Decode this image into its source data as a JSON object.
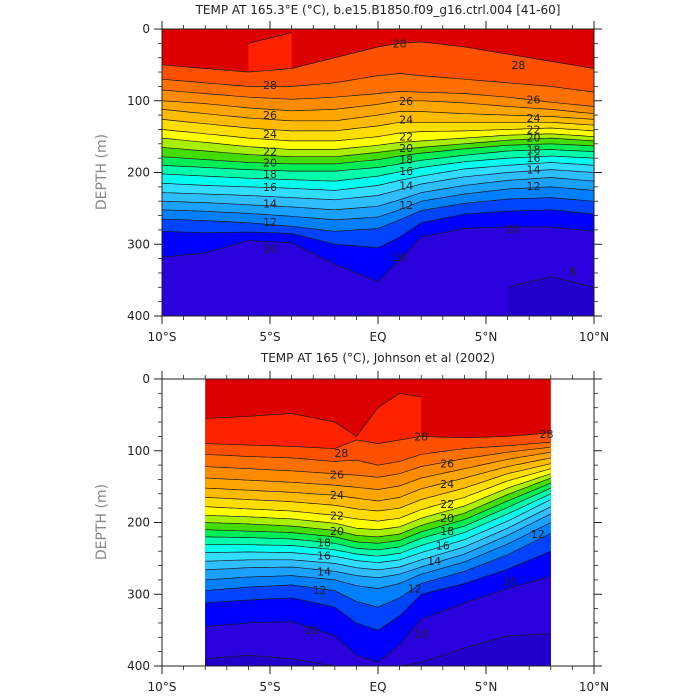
{
  "chart_data": [
    {
      "type": "contour",
      "title": "TEMP AT 165.3°E (°C), b.e15.B1850.f09_g16.ctrl.004 [41-60]",
      "ylabel": "DEPTH (m)",
      "xlim": [
        -10,
        10
      ],
      "ylim": [
        400,
        0
      ],
      "x_ticks": [
        -10,
        -5,
        0,
        5,
        10
      ],
      "x_tick_labels": [
        "10°S",
        "5°S",
        "EQ",
        "5°N",
        "10°N"
      ],
      "y_ticks": [
        0,
        100,
        200,
        300,
        400
      ],
      "y_tick_labels": [
        "0",
        "100",
        "200",
        "300",
        "400"
      ],
      "data_extent_x": [
        -10,
        10
      ],
      "contour_interval": 1,
      "colors": [
        "#2200cc",
        "#2a00dd",
        "#0000ff",
        "#0044ff",
        "#0080ff",
        "#1aa0ff",
        "#2ebeff",
        "#30dcff",
        "#00ffee",
        "#00ffaa",
        "#00ee55",
        "#44dd00",
        "#aaee00",
        "#ffff00",
        "#ffdd00",
        "#ffbb00",
        "#ffa500",
        "#ff8c00",
        "#ff7000",
        "#ff5000",
        "#ff2200",
        "#dd0000"
      ],
      "color_levels": [
        0,
        9,
        10,
        11,
        12,
        13,
        14,
        15,
        16,
        17,
        18,
        19,
        20,
        21,
        22,
        23,
        24,
        25,
        26,
        27,
        28,
        29
      ],
      "isotherm_depths": {
        "x": [
          -10,
          -8,
          -6,
          -4,
          -2,
          0,
          1,
          2,
          4,
          6,
          8,
          10
        ],
        "T29": [
          null,
          null,
          20,
          5,
          null,
          null,
          null,
          null,
          null,
          null,
          null,
          null
        ],
        "T28": [
          50,
          55,
          60,
          55,
          40,
          25,
          20,
          18,
          25,
          35,
          45,
          55
        ],
        "T27": [
          70,
          75,
          80,
          80,
          75,
          65,
          62,
          65,
          70,
          75,
          80,
          88
        ],
        "T26": [
          85,
          90,
          95,
          98,
          95,
          90,
          87,
          88,
          90,
          95,
          102,
          108
        ],
        "T25": [
          100,
          104,
          110,
          114,
          112,
          105,
          100,
          100,
          103,
          108,
          112,
          118
        ],
        "T24": [
          112,
          118,
          124,
          128,
          128,
          120,
          115,
          115,
          118,
          120,
          122,
          126
        ],
        "T23": [
          126,
          132,
          138,
          142,
          142,
          135,
          130,
          130,
          130,
          130,
          130,
          134
        ],
        "T22": [
          140,
          146,
          152,
          156,
          156,
          150,
          145,
          143,
          142,
          140,
          138,
          142
        ],
        "T21": [
          152,
          158,
          164,
          168,
          168,
          162,
          158,
          156,
          152,
          148,
          146,
          150
        ],
        "T20": [
          165,
          170,
          175,
          178,
          178,
          172,
          168,
          165,
          160,
          155,
          152,
          156
        ],
        "T19": [
          178,
          182,
          186,
          188,
          188,
          182,
          177,
          173,
          167,
          162,
          160,
          163
        ],
        "T18": [
          190,
          193,
          196,
          198,
          198,
          193,
          188,
          183,
          176,
          170,
          168,
          171
        ],
        "T17": [
          202,
          205,
          208,
          210,
          212,
          205,
          199,
          193,
          185,
          180,
          177,
          180
        ],
        "T16": [
          215,
          218,
          220,
          222,
          225,
          218,
          211,
          205,
          195,
          190,
          186,
          190
        ],
        "T15": [
          228,
          230,
          232,
          235,
          238,
          232,
          224,
          216,
          206,
          200,
          196,
          200
        ],
        "T14": [
          240,
          242,
          245,
          248,
          252,
          247,
          238,
          228,
          218,
          211,
          207,
          212
        ],
        "T13": [
          252,
          254,
          257,
          261,
          266,
          262,
          252,
          240,
          230,
          223,
          220,
          225
        ],
        "T12": [
          265,
          267,
          270,
          275,
          282,
          278,
          266,
          253,
          243,
          237,
          235,
          240
        ],
        "T11": [
          282,
          284,
          283,
          285,
          300,
          305,
          290,
          270,
          258,
          254,
          252,
          258
        ],
        "T10": [
          318,
          312,
          295,
          298,
          328,
          352,
          322,
          290,
          278,
          276,
          276,
          282
        ],
        "T9": [
          null,
          null,
          null,
          null,
          null,
          null,
          null,
          null,
          null,
          360,
          345,
          360
        ]
      },
      "contour_labels": [
        {
          "value": "28",
          "x": 1.0,
          "y": 20
        },
        {
          "value": "28",
          "x": -5.0,
          "y": 78
        },
        {
          "value": "28",
          "x": 6.5,
          "y": 50
        },
        {
          "value": "26",
          "x": -5.0,
          "y": 120
        },
        {
          "value": "26",
          "x": 1.3,
          "y": 100
        },
        {
          "value": "26",
          "x": 7.2,
          "y": 98
        },
        {
          "value": "24",
          "x": -5.0,
          "y": 146
        },
        {
          "value": "24",
          "x": 1.3,
          "y": 126
        },
        {
          "value": "24",
          "x": 7.2,
          "y": 124
        },
        {
          "value": "22",
          "x": -5.0,
          "y": 171
        },
        {
          "value": "22",
          "x": 1.3,
          "y": 150
        },
        {
          "value": "22",
          "x": 7.2,
          "y": 140
        },
        {
          "value": "20",
          "x": -5.0,
          "y": 186
        },
        {
          "value": "20",
          "x": 1.3,
          "y": 166
        },
        {
          "value": "20",
          "x": 7.2,
          "y": 151
        },
        {
          "value": "18",
          "x": -5.0,
          "y": 202
        },
        {
          "value": "18",
          "x": 1.3,
          "y": 182
        },
        {
          "value": "18",
          "x": 7.2,
          "y": 168
        },
        {
          "value": "16",
          "x": -5.0,
          "y": 220
        },
        {
          "value": "16",
          "x": 1.3,
          "y": 198
        },
        {
          "value": "16",
          "x": 7.2,
          "y": 180
        },
        {
          "value": "14",
          "x": -5.0,
          "y": 243
        },
        {
          "value": "14",
          "x": 1.3,
          "y": 218
        },
        {
          "value": "14",
          "x": 7.2,
          "y": 196
        },
        {
          "value": "12",
          "x": -5.0,
          "y": 269
        },
        {
          "value": "12",
          "x": 1.3,
          "y": 245
        },
        {
          "value": "12",
          "x": 7.2,
          "y": 219
        },
        {
          "value": "10",
          "x": -5.0,
          "y": 306
        },
        {
          "value": "10",
          "x": 1.0,
          "y": 318
        },
        {
          "value": "10",
          "x": 6.2,
          "y": 279
        },
        {
          "value": "8",
          "x": 9.0,
          "y": 338
        }
      ]
    },
    {
      "type": "contour",
      "title": "TEMP AT 165 (°C), Johnson et al (2002)",
      "ylabel": "DEPTH (m)",
      "xlim": [
        -10,
        10
      ],
      "ylim": [
        400,
        0
      ],
      "x_ticks": [
        -10,
        -5,
        0,
        5,
        10
      ],
      "x_tick_labels": [
        "10°S",
        "5°S",
        "EQ",
        "5°N",
        "10°N"
      ],
      "y_ticks": [
        0,
        100,
        200,
        300,
        400
      ],
      "y_tick_labels": [
        "0",
        "100",
        "200",
        "300",
        "400"
      ],
      "data_extent_x": [
        -8,
        8
      ],
      "contour_interval": 1,
      "colors": [
        "#2200cc",
        "#2a00dd",
        "#0000ff",
        "#0044ff",
        "#0080ff",
        "#1aa0ff",
        "#2ebeff",
        "#30dcff",
        "#00ffee",
        "#00ffaa",
        "#00ee55",
        "#44dd00",
        "#aaee00",
        "#ffff00",
        "#ffdd00",
        "#ffbb00",
        "#ffa500",
        "#ff8c00",
        "#ff7000",
        "#ff5000",
        "#ff2200",
        "#dd0000"
      ],
      "color_levels": [
        0,
        9,
        10,
        11,
        12,
        13,
        14,
        15,
        16,
        17,
        18,
        19,
        20,
        21,
        22,
        23,
        24,
        25,
        26,
        27,
        28,
        29
      ],
      "isotherm_depths": {
        "x": [
          -8,
          -6,
          -4,
          -2,
          -1,
          0,
          1,
          2,
          4,
          6,
          8
        ],
        "T29": [
          55,
          52,
          48,
          60,
          80,
          40,
          20,
          25,
          null,
          null,
          null
        ],
        "T28": [
          90,
          92,
          94,
          97,
          85,
          90,
          85,
          80,
          82,
          80,
          75
        ],
        "T27": [
          105,
          108,
          110,
          115,
          113,
          120,
          115,
          105,
          97,
          93,
          88
        ],
        "T26": [
          122,
          125,
          128,
          132,
          134,
          137,
          132,
          122,
          111,
          102,
          95
        ],
        "T25": [
          138,
          141,
          144,
          148,
          151,
          154,
          149,
          138,
          125,
          112,
          102
        ],
        "T24": [
          152,
          155,
          158,
          162,
          166,
          170,
          165,
          153,
          138,
          122,
          110
        ],
        "T23": [
          165,
          168,
          171,
          176,
          181,
          184,
          180,
          168,
          152,
          132,
          118
        ],
        "T22": [
          178,
          181,
          184,
          190,
          195,
          198,
          194,
          182,
          165,
          142,
          125
        ],
        "T21": [
          190,
          192,
          195,
          201,
          208,
          210,
          206,
          194,
          177,
          152,
          132
        ],
        "T20": [
          200,
          202,
          205,
          211,
          218,
          220,
          216,
          204,
          187,
          161,
          138
        ],
        "T19": [
          210,
          212,
          214,
          220,
          227,
          229,
          225,
          213,
          196,
          170,
          145
        ],
        "T18": [
          220,
          221,
          223,
          229,
          236,
          238,
          234,
          222,
          205,
          179,
          152
        ],
        "T17": [
          231,
          231,
          232,
          238,
          244,
          247,
          243,
          232,
          214,
          188,
          160
        ],
        "T16": [
          242,
          241,
          242,
          247,
          253,
          256,
          252,
          242,
          224,
          198,
          168
        ],
        "T15": [
          254,
          252,
          252,
          257,
          263,
          266,
          262,
          252,
          234,
          208,
          178
        ],
        "T14": [
          266,
          263,
          262,
          268,
          274,
          277,
          272,
          262,
          244,
          218,
          188
        ],
        "T13": [
          280,
          276,
          274,
          280,
          288,
          292,
          285,
          272,
          255,
          230,
          200
        ],
        "T12": [
          295,
          290,
          287,
          295,
          310,
          318,
          305,
          285,
          268,
          245,
          215
        ],
        "T11": [
          312,
          308,
          305,
          318,
          340,
          350,
          330,
          300,
          285,
          265,
          240
        ],
        "T10": [
          345,
          340,
          338,
          358,
          385,
          395,
          370,
          335,
          312,
          292,
          275
        ],
        "T9": [
          390,
          385,
          390,
          400,
          400,
          400,
          400,
          395,
          375,
          358,
          355
        ]
      },
      "contour_labels": [
        {
          "value": "28",
          "x": -1.7,
          "y": 103
        },
        {
          "value": "28",
          "x": 2.0,
          "y": 80
        },
        {
          "value": "28",
          "x": 7.8,
          "y": 77
        },
        {
          "value": "26",
          "x": -1.9,
          "y": 133
        },
        {
          "value": "26",
          "x": 3.2,
          "y": 118
        },
        {
          "value": "24",
          "x": -1.9,
          "y": 162
        },
        {
          "value": "24",
          "x": 3.2,
          "y": 146
        },
        {
          "value": "22",
          "x": -1.9,
          "y": 190
        },
        {
          "value": "22",
          "x": 3.2,
          "y": 174
        },
        {
          "value": "20",
          "x": -1.9,
          "y": 212
        },
        {
          "value": "20",
          "x": 3.2,
          "y": 194
        },
        {
          "value": "18",
          "x": -2.5,
          "y": 228
        },
        {
          "value": "18",
          "x": 3.2,
          "y": 212
        },
        {
          "value": "16",
          "x": -2.5,
          "y": 246
        },
        {
          "value": "16",
          "x": 3.0,
          "y": 232
        },
        {
          "value": "14",
          "x": -2.5,
          "y": 268
        },
        {
          "value": "14",
          "x": 2.6,
          "y": 254
        },
        {
          "value": "12",
          "x": -2.7,
          "y": 294
        },
        {
          "value": "12",
          "x": 1.7,
          "y": 292
        },
        {
          "value": "12",
          "x": 7.4,
          "y": 216
        },
        {
          "value": "10",
          "x": -3.1,
          "y": 350
        },
        {
          "value": "10",
          "x": 2.0,
          "y": 355
        },
        {
          "value": "10",
          "x": 6.1,
          "y": 282
        }
      ]
    }
  ]
}
